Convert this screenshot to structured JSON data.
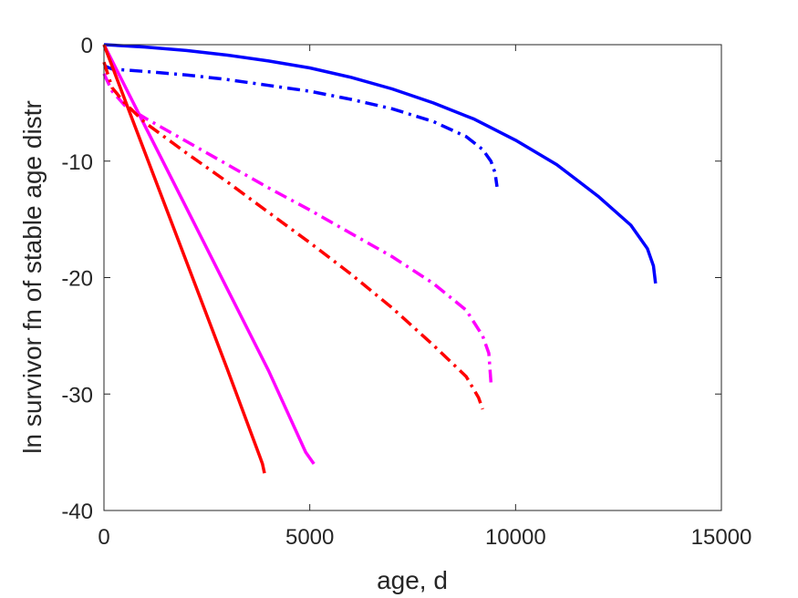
{
  "chart_data": {
    "type": "line",
    "title": "",
    "xlabel": "age, d",
    "ylabel": "ln survivor fn of stable age distr",
    "xlim": [
      0,
      15000
    ],
    "ylim": [
      -40,
      0
    ],
    "xticks": [
      0,
      5000,
      10000,
      15000
    ],
    "xtick_labels": [
      "0",
      "5000",
      "10000",
      "15000"
    ],
    "yticks": [
      0,
      -10,
      -20,
      -30,
      -40
    ],
    "ytick_labels": [
      "0",
      "-10",
      "-20",
      "-30",
      "-40"
    ],
    "grid": false,
    "legend": "none",
    "series": [
      {
        "color": "#0000ff",
        "style": "solid",
        "x": [
          0,
          1000,
          2000,
          3000,
          4000,
          5000,
          6000,
          7000,
          8000,
          9000,
          10000,
          11000,
          12000,
          12800,
          13200,
          13350,
          13400
        ],
        "y": [
          0,
          -0.2,
          -0.5,
          -0.9,
          -1.4,
          -2.0,
          -2.8,
          -3.8,
          -5.0,
          -6.4,
          -8.2,
          -10.3,
          -13.0,
          -15.5,
          -17.5,
          -19.0,
          -20.5
        ]
      },
      {
        "color": "#0000ff",
        "style": "dashdot",
        "x": [
          0,
          200,
          1000,
          2000,
          3000,
          4000,
          5000,
          6000,
          7000,
          8000,
          8800,
          9200,
          9400,
          9500,
          9550
        ],
        "y": [
          -1.8,
          -2.1,
          -2.3,
          -2.6,
          -3.0,
          -3.5,
          -4.0,
          -4.7,
          -5.5,
          -6.6,
          -7.9,
          -9.0,
          -10.0,
          -11.0,
          -12.2
        ]
      },
      {
        "color": "#ff00ff",
        "style": "solid",
        "x": [
          0,
          1000,
          2000,
          3000,
          4000,
          4900,
          5000,
          5100
        ],
        "y": [
          0,
          -7.0,
          -14.0,
          -21.0,
          -28.0,
          -35.0,
          -35.5,
          -36.0
        ]
      },
      {
        "color": "#ff00ff",
        "style": "dashdot",
        "x": [
          0,
          200,
          500,
          1000,
          2000,
          3000,
          4000,
          5000,
          6000,
          7000,
          8000,
          8800,
          9200,
          9350,
          9400
        ],
        "y": [
          -2.5,
          -4.0,
          -5.2,
          -6.3,
          -8.3,
          -10.3,
          -12.3,
          -14.2,
          -16.2,
          -18.2,
          -20.5,
          -22.8,
          -25.0,
          -26.5,
          -29.0
        ]
      },
      {
        "color": "#ff0000",
        "style": "solid",
        "x": [
          0,
          1000,
          2000,
          3000,
          3800,
          3850,
          3900
        ],
        "y": [
          0,
          -9.3,
          -18.6,
          -27.9,
          -35.5,
          -36.0,
          -36.8
        ]
      },
      {
        "color": "#ff0000",
        "style": "dashdot",
        "x": [
          0,
          200,
          500,
          1000,
          2000,
          3000,
          4000,
          5000,
          6000,
          7000,
          8000,
          8800,
          9100,
          9200
        ],
        "y": [
          -1.5,
          -3.7,
          -5.0,
          -6.7,
          -9.3,
          -11.8,
          -14.4,
          -17.0,
          -19.7,
          -22.6,
          -25.8,
          -28.5,
          -30.3,
          -31.3
        ]
      }
    ]
  }
}
